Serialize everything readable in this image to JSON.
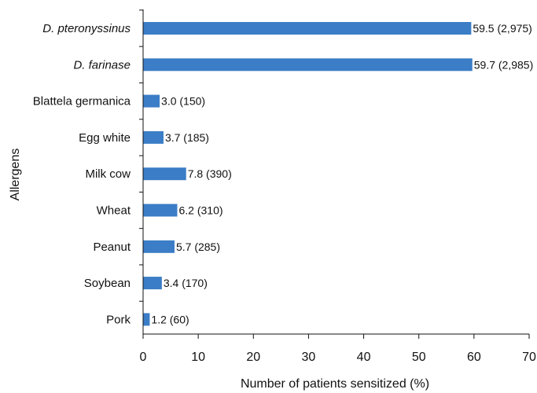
{
  "chart_data": {
    "type": "bar",
    "orientation": "horizontal",
    "categories": [
      "D. pteronyssinus",
      "D. farinase",
      "Blattela germanica",
      "Egg white",
      "Milk cow",
      "Wheat",
      "Peanut",
      "Soybean",
      "Pork"
    ],
    "category_styles": [
      "italic",
      "italic",
      "normal",
      "normal",
      "normal",
      "normal",
      "normal",
      "normal",
      "normal"
    ],
    "values": [
      59.5,
      59.7,
      3.0,
      3.7,
      7.8,
      6.2,
      5.7,
      3.4,
      1.2
    ],
    "data_labels": [
      "59.5 (2,975)",
      "59.7 (2,985)",
      "3.0 (150)",
      "3.7 (185)",
      "7.8 (390)",
      "6.2 (310)",
      "5.7 (285)",
      "3.4 (170)",
      "1.2 (60)"
    ],
    "title": "",
    "xlabel": "Number of patients sensitized (%)",
    "ylabel": "Allergens",
    "xlim": [
      0,
      70
    ],
    "xticks": [
      "0",
      "10",
      "20",
      "30",
      "40",
      "50",
      "60",
      "70"
    ],
    "grid": false,
    "legend": "none",
    "bar_color": "#3b7dc6"
  }
}
